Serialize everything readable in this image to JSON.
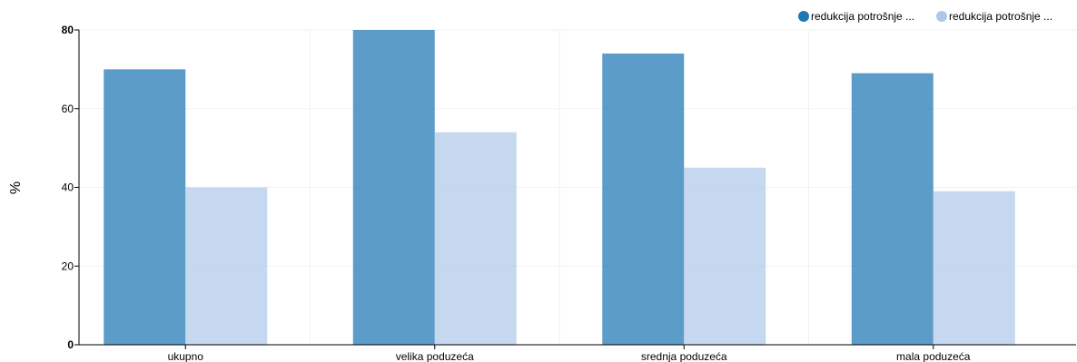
{
  "chart_data": {
    "type": "bar",
    "categories": [
      "ukupno",
      "velika poduzeća",
      "srednja poduzeća",
      "mala poduzeća"
    ],
    "series": [
      {
        "name": "redukcija potrošnje ...",
        "values": [
          70,
          80,
          74,
          69
        ],
        "color": "#1f77b4"
      },
      {
        "name": "redukcija potrošnje ...",
        "values": [
          40,
          54,
          45,
          39
        ],
        "color": "#aec7e8"
      }
    ],
    "ylabel": "%",
    "xlabel": "",
    "ylim": [
      0,
      80
    ],
    "yticks": [
      0,
      20,
      40,
      60,
      80
    ],
    "grid": true,
    "legend": "top-right"
  }
}
